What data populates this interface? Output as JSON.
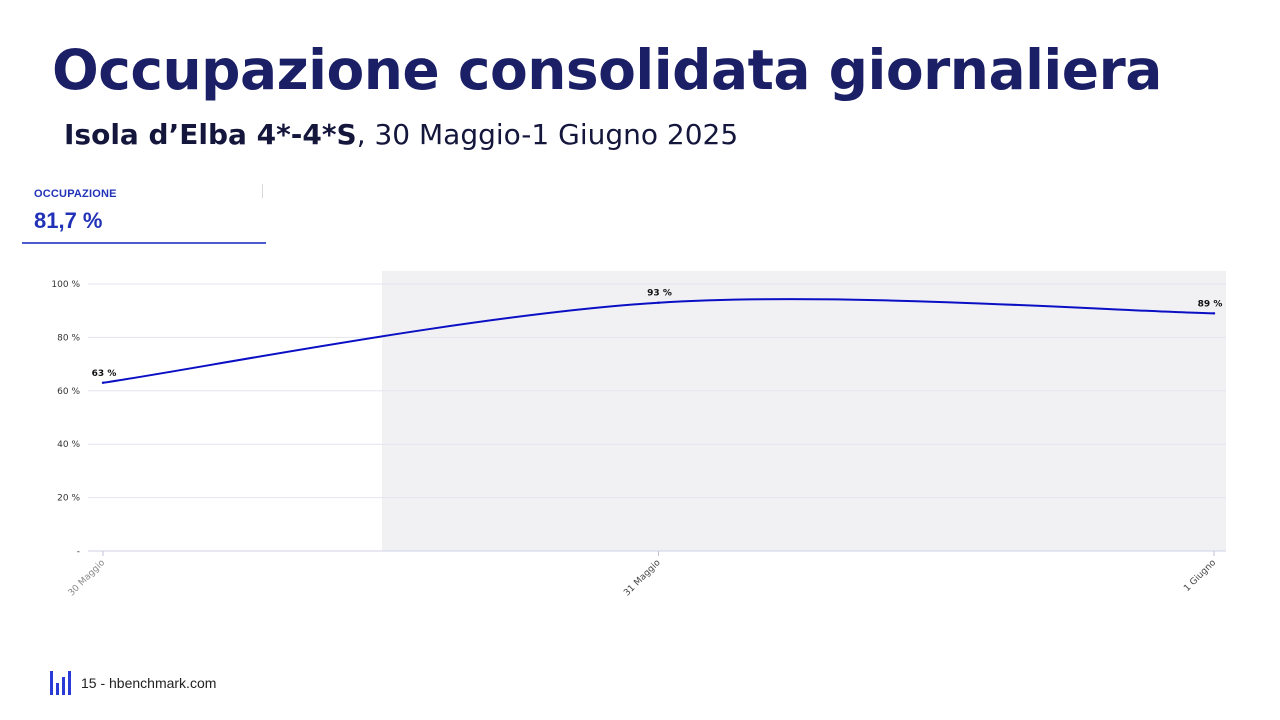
{
  "title": "Occupazione consolidata giornaliera",
  "subtitle": {
    "bold": "Isola d’Elba 4*-4*S",
    "rest": ", 30 Maggio-1 Giugno 2025"
  },
  "kpi": {
    "label": "OCCUPAZIONE",
    "value": "81,7 %"
  },
  "footer": {
    "text": "15 - hbenchmark.com"
  },
  "colors": {
    "line": "#0b0fc4",
    "title": "#1b1f66",
    "accent": "#2a3ad6",
    "shade": "#f1f1f4"
  },
  "chart_data": {
    "type": "line",
    "categories": [
      "30 Maggio",
      "31 Maggio",
      "1 Giugno"
    ],
    "values": [
      63,
      93,
      89
    ],
    "data_labels": [
      "63 %",
      "93 %",
      "89 %"
    ],
    "yticks": [
      "-",
      "20 %",
      "40 %",
      "60 %",
      "80 %",
      "100 %"
    ],
    "ylim": [
      0,
      100
    ],
    "grid": true,
    "legend": "none",
    "title": "",
    "xlabel": "",
    "ylabel": ""
  }
}
